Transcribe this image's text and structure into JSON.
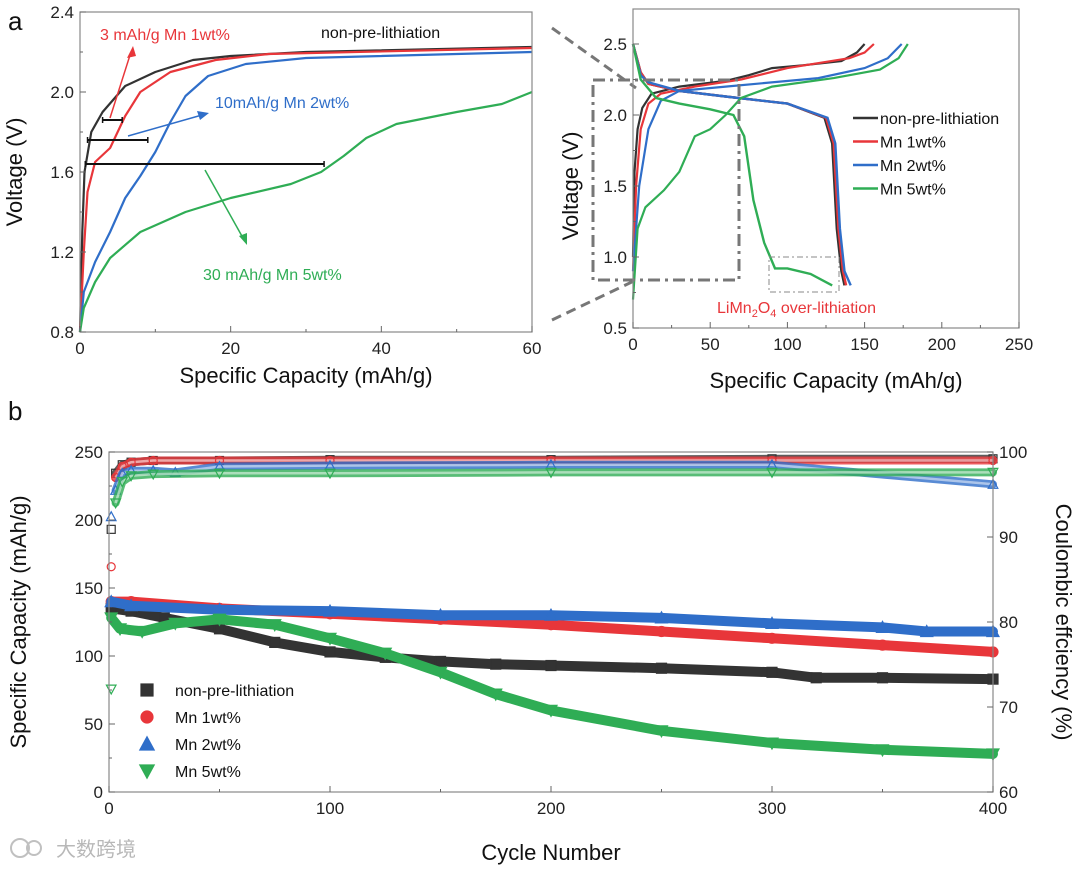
{
  "colors": {
    "non": "#333333",
    "mn1": "#e8363a",
    "mn2": "#2f6ec9",
    "mn5": "#2fad55",
    "frame": "#888888",
    "watermark": "#b8b8b8"
  },
  "watermark": {
    "text": "大数跨境"
  },
  "chart_data": [
    {
      "panel": "a",
      "type": "line",
      "xlabel": "Specific Capacity (mAh/g)",
      "ylabel": "Voltage (V)",
      "xlim": [
        0,
        60
      ],
      "ylim": [
        0.8,
        2.4
      ],
      "xticks": [
        0,
        20,
        40,
        60
      ],
      "yticks": [
        0.8,
        1.2,
        1.6,
        2.0,
        2.4
      ],
      "ytick_labels": [
        "0.8",
        "1.2",
        "1.6",
        "2.0",
        "2.4"
      ],
      "annotations": [
        {
          "text": "3 mAh/g Mn 1wt%",
          "series": "mn1"
        },
        {
          "text": "non-pre-lithiation",
          "series": "non"
        },
        {
          "text": "10mAh/g Mn 2wt%",
          "series": "mn2"
        },
        {
          "text": "30 mAh/g Mn 5wt%",
          "series": "mn5"
        }
      ],
      "capacity_bars": [
        {
          "y": 1.86,
          "x": [
            3,
            5.6
          ]
        },
        {
          "y": 1.76,
          "x": [
            1,
            9
          ]
        },
        {
          "y": 1.64,
          "x": [
            0.7,
            32.4
          ]
        }
      ],
      "series": [
        {
          "name": "non-pre-lithiation",
          "key": "non",
          "x": [
            0,
            0.3,
            0.6,
            1.5,
            3,
            6,
            10,
            15,
            20,
            30,
            60
          ],
          "y": [
            0.8,
            1.3,
            1.6,
            1.8,
            1.9,
            2.03,
            2.1,
            2.16,
            2.18,
            2.2,
            2.225
          ]
        },
        {
          "name": "Mn 1wt%",
          "key": "mn1",
          "x": [
            0,
            0.5,
            1,
            2,
            4,
            6,
            8,
            12,
            18,
            25,
            60
          ],
          "y": [
            0.8,
            1.2,
            1.5,
            1.65,
            1.72,
            1.88,
            2.0,
            2.1,
            2.16,
            2.19,
            2.22
          ]
        },
        {
          "name": "Mn 2wt%",
          "key": "mn2",
          "x": [
            0,
            0.5,
            2,
            4,
            6,
            8,
            10,
            12,
            14,
            17,
            22,
            30,
            60
          ],
          "y": [
            0.8,
            1.0,
            1.15,
            1.3,
            1.47,
            1.58,
            1.7,
            1.85,
            1.98,
            2.08,
            2.14,
            2.17,
            2.2
          ]
        },
        {
          "name": "Mn 5wt%",
          "key": "mn5",
          "x": [
            0,
            0.5,
            2,
            4,
            8,
            14,
            20,
            28,
            32,
            35,
            38,
            42,
            50,
            56,
            60
          ],
          "y": [
            0.8,
            0.92,
            1.05,
            1.17,
            1.3,
            1.4,
            1.47,
            1.54,
            1.6,
            1.68,
            1.77,
            1.84,
            1.9,
            1.94,
            2.0
          ]
        }
      ]
    },
    {
      "panel": "a-inset",
      "type": "line",
      "xlabel": "Specific Capacity (mAh/g)",
      "ylabel": "Voltage (V)",
      "xlim": [
        0,
        250
      ],
      "ylim": [
        0.5,
        2.7
      ],
      "xticks": [
        0,
        50,
        100,
        150,
        200,
        250
      ],
      "yticks": [
        0.5,
        1.0,
        1.5,
        2.0,
        2.5
      ],
      "ytick_labels": [
        "0.5",
        "1.0",
        "1.5",
        "2.0",
        "2.5"
      ],
      "legend": {
        "position": "right",
        "entries": [
          "non-pre-lithiation",
          "Mn 1wt%",
          "Mn 2wt%",
          "Mn 5wt%"
        ]
      },
      "annotation": {
        "parts": [
          "LiMn",
          "2",
          "O",
          "4",
          " over-lithiation"
        ]
      },
      "series": [
        {
          "name": "non-pre-lithiation",
          "key": "non",
          "charge": {
            "x": [
              0,
              1,
              3,
              6,
              12,
              30,
              60,
              75,
              90,
              110,
              135,
              145,
              150
            ],
            "y": [
              1.0,
              1.6,
              1.9,
              2.05,
              2.15,
              2.2,
              2.24,
              2.28,
              2.33,
              2.35,
              2.38,
              2.44,
              2.5
            ]
          },
          "discharge": {
            "x": [
              0,
              5,
              10,
              30,
              60,
              100,
              124,
              129,
              132,
              135,
              137
            ],
            "y": [
              2.5,
              2.3,
              2.22,
              2.17,
              2.13,
              2.08,
              1.98,
              1.8,
              1.2,
              0.9,
              0.8
            ]
          }
        },
        {
          "name": "Mn 1wt%",
          "key": "mn1",
          "charge": {
            "x": [
              0,
              2,
              5,
              10,
              18,
              40,
              70,
              100,
              140,
              150,
              156
            ],
            "y": [
              0.9,
              1.5,
              1.9,
              2.08,
              2.15,
              2.2,
              2.25,
              2.33,
              2.4,
              2.44,
              2.5
            ]
          },
          "discharge": {
            "x": [
              0,
              5,
              10,
              30,
              60,
              100,
              125,
              130,
              133,
              136,
              138
            ],
            "y": [
              2.5,
              2.3,
              2.22,
              2.17,
              2.13,
              2.08,
              1.98,
              1.8,
              1.2,
              0.9,
              0.8
            ]
          }
        },
        {
          "name": "Mn 2wt%",
          "key": "mn2",
          "charge": {
            "x": [
              0,
              4,
              10,
              18,
              30,
              60,
              120,
              150,
              165,
              174
            ],
            "y": [
              0.9,
              1.5,
              1.9,
              2.1,
              2.17,
              2.2,
              2.26,
              2.33,
              2.4,
              2.5
            ]
          },
          "discharge": {
            "x": [
              0,
              5,
              10,
              30,
              60,
              100,
              126,
              131,
              134,
              137,
              141
            ],
            "y": [
              2.5,
              2.28,
              2.23,
              2.17,
              2.13,
              2.08,
              1.98,
              1.8,
              1.2,
              0.9,
              0.8
            ]
          }
        },
        {
          "name": "Mn 5wt%",
          "key": "mn5",
          "charge": {
            "x": [
              0,
              3,
              8,
              20,
              30,
              40,
              50,
              60,
              70,
              90,
              130,
              160,
              172,
              178
            ],
            "y": [
              0.7,
              1.2,
              1.35,
              1.47,
              1.6,
              1.85,
              1.9,
              2.0,
              2.12,
              2.2,
              2.26,
              2.32,
              2.4,
              2.5
            ]
          },
          "discharge": {
            "x": [
              0,
              5,
              15,
              30,
              50,
              65,
              72,
              78,
              85,
              92,
              100,
              115,
              129
            ],
            "y": [
              2.5,
              2.25,
              2.12,
              2.08,
              2.04,
              2.0,
              1.85,
              1.4,
              1.1,
              0.92,
              0.92,
              0.88,
              0.8
            ]
          }
        }
      ]
    },
    {
      "panel": "b",
      "type": "scatter",
      "xlabel": "Cycle Number",
      "ylabel": "Specific Capacity (mAh/g)",
      "y2label": "Coulombic effciency (%)",
      "xlim": [
        0,
        400
      ],
      "ylim": [
        0,
        250
      ],
      "y2lim": [
        60,
        100
      ],
      "xticks": [
        0,
        100,
        200,
        300,
        400
      ],
      "yticks": [
        0,
        50,
        100,
        150,
        200,
        250
      ],
      "y2ticks": [
        60,
        70,
        80,
        90,
        100
      ],
      "legend": {
        "position": "bottom-left",
        "entries": [
          "non-pre-lithiation",
          "Mn 1wt%",
          "Mn 2wt%",
          "Mn 5wt%"
        ]
      },
      "series": [
        {
          "name": "non-pre-lithiation",
          "key": "non",
          "marker": "square",
          "capacity": {
            "x": [
              1,
              10,
              25,
              50,
              75,
              100,
              125,
              150,
              175,
              200,
              250,
              300,
              320,
              350,
              400
            ],
            "y": [
              135,
              133,
              128,
              120,
              110,
              103,
              99,
              96,
              94,
              93,
              91,
              88,
              84,
              84,
              83
            ]
          },
          "efficiency": {
            "x": [
              1,
              3,
              6,
              10,
              20,
              50,
              100,
              200,
              300,
              400
            ],
            "y": [
              90.9,
              97.5,
              98.5,
              98.8,
              99.0,
              99.0,
              99.1,
              99.1,
              99.2,
              99.2
            ]
          }
        },
        {
          "name": "Mn 1wt%",
          "key": "mn1",
          "marker": "circle",
          "capacity": {
            "x": [
              1,
              10,
              50,
              100,
              150,
              200,
              250,
              300,
              350,
              400
            ],
            "y": [
              140,
              140,
              135,
              131,
              127,
              123,
              118,
              113,
              108,
              103
            ]
          },
          "efficiency": {
            "x": [
              1,
              3,
              6,
              10,
              20,
              50,
              100,
              200,
              300,
              400
            ],
            "y": [
              86.5,
              97.0,
              98.3,
              98.8,
              99.0,
              99.0,
              99.0,
              99.0,
              99.0,
              99.0
            ]
          }
        },
        {
          "name": "Mn 2wt%",
          "key": "mn2",
          "marker": "triangle-up",
          "capacity": {
            "x": [
              1,
              10,
              50,
              100,
              150,
              200,
              250,
              300,
              350,
              370,
              400
            ],
            "y": [
              140,
              137,
              134,
              133,
              130,
              130,
              128,
              124,
              121,
              118,
              118
            ]
          },
          "efficiency": {
            "x": [
              1,
              3,
              6,
              10,
              20,
              30,
              50,
              100,
              200,
              300,
              400
            ],
            "y": [
              92.4,
              95.5,
              97.5,
              97.8,
              97.8,
              97.6,
              98.3,
              98.4,
              98.5,
              98.5,
              96.2
            ]
          }
        },
        {
          "name": "Mn 5wt%",
          "key": "mn5",
          "marker": "triangle-down",
          "capacity": {
            "x": [
              1,
              5,
              15,
              30,
              50,
              75,
              100,
              125,
              150,
              175,
              200,
              250,
              300,
              350,
              400
            ],
            "y": [
              128,
              120,
              118,
              124,
              127,
              123,
              113,
              102,
              88,
              72,
              60,
              45,
              36,
              31,
              28
            ]
          },
          "efficiency": {
            "x": [
              1,
              3,
              6,
              10,
              20,
              50,
              100,
              200,
              300,
              400
            ],
            "y": [
              72.1,
              94.0,
              96.5,
              97.2,
              97.4,
              97.5,
              97.5,
              97.6,
              97.6,
              97.6
            ]
          }
        }
      ]
    }
  ]
}
